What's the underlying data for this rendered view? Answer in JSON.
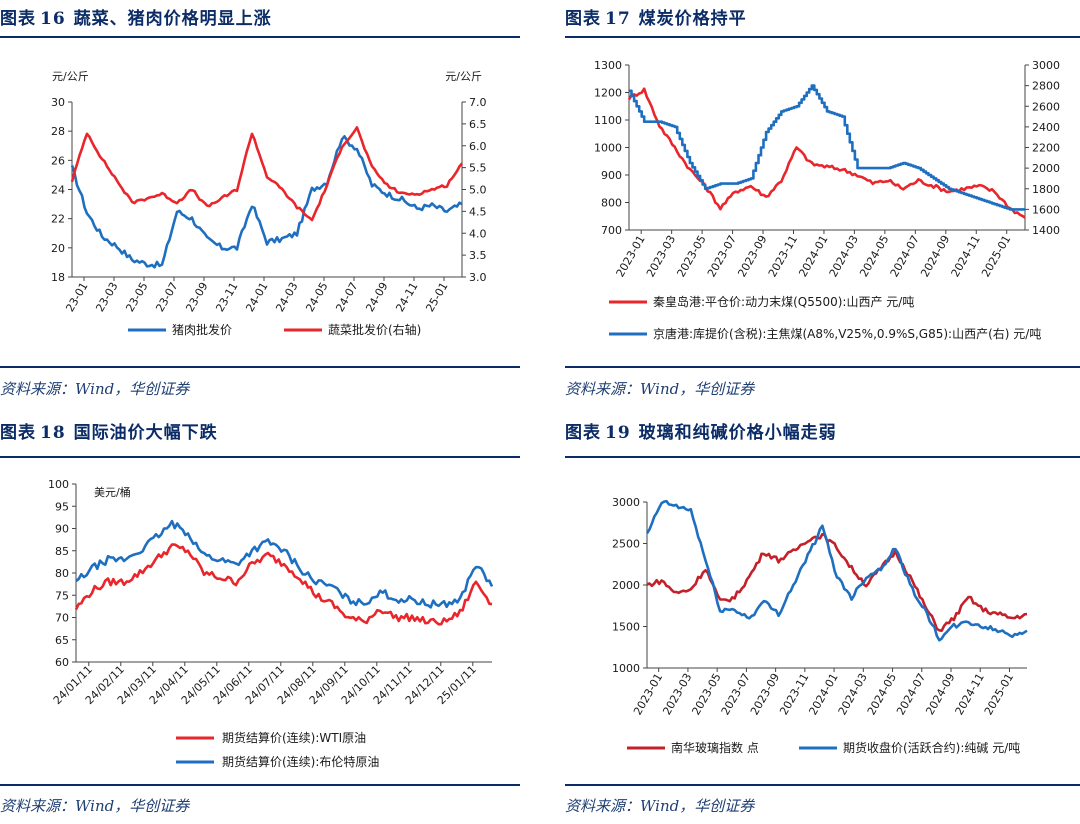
{
  "panels": [
    {
      "fig_label": "图表",
      "fig_num": "16",
      "fig_title": "蔬菜、猪肉价格明显上涨",
      "source": "资料来源：Wind，华创证券"
    },
    {
      "fig_label": "图表",
      "fig_num": "17",
      "fig_title": "煤炭价格持平",
      "source": "资料来源：Wind，华创证券"
    },
    {
      "fig_label": "图表",
      "fig_num": "18",
      "fig_title": "国际油价大幅下跌",
      "source": "资料来源：Wind，华创证券"
    },
    {
      "fig_label": "图表",
      "fig_num": "19",
      "fig_title": "玻璃和纯碱价格小幅走弱",
      "source": "资料来源：Wind，华创证券"
    }
  ],
  "chart_data": [
    {
      "type": "line",
      "title": "蔬菜、猪肉价格明显上涨",
      "y_unit_left": "元/公斤",
      "y_unit_right": "元/公斤",
      "ylim_left": [
        18,
        30
      ],
      "yticks_left": [
        18,
        20,
        22,
        24,
        26,
        28,
        30
      ],
      "ylim_right": [
        3.0,
        7.0
      ],
      "yticks_right": [
        3.0,
        3.5,
        4.0,
        4.5,
        5.0,
        5.5,
        6.0,
        6.5,
        7.0
      ],
      "x_labels": [
        "23-01",
        "23-03",
        "23-05",
        "23-07",
        "23-09",
        "23-11",
        "24-01",
        "24-03",
        "24-05",
        "24-07",
        "24-09",
        "24-11",
        "25-01"
      ],
      "x_index": [
        0,
        1,
        2,
        3,
        4,
        5,
        6,
        7,
        8,
        9,
        10,
        11,
        12,
        13,
        14,
        15,
        16,
        17,
        18,
        19,
        20,
        21,
        22,
        23,
        24,
        25,
        26
      ],
      "series": [
        {
          "name": "猪肉批发价",
          "axis": "left",
          "color": "#1f6fc0",
          "values": [
            25.5,
            22.4,
            20.8,
            20.1,
            19.2,
            18.9,
            18.8,
            22.5,
            22.0,
            20.6,
            20.0,
            20.0,
            23.0,
            20.4,
            20.6,
            21.0,
            24.0,
            24.5,
            27.6,
            26.8,
            24.3,
            23.7,
            23.3,
            22.7,
            22.9,
            22.5,
            23.0
          ]
        },
        {
          "name": "蔬菜批发价(右轴)",
          "axis": "right",
          "color": "#e8262b",
          "values": [
            5.2,
            6.3,
            5.7,
            5.2,
            4.7,
            4.8,
            4.9,
            4.7,
            5.0,
            4.6,
            4.8,
            5.0,
            6.3,
            5.3,
            5.0,
            4.6,
            4.3,
            5.1,
            6.0,
            6.4,
            5.5,
            5.1,
            4.9,
            4.9,
            5.0,
            5.1,
            5.6
          ]
        }
      ]
    },
    {
      "type": "line",
      "title": "煤炭价格持平",
      "ylim_left": [
        700,
        1300
      ],
      "yticks_left": [
        700,
        800,
        900,
        1000,
        1100,
        1200,
        1300
      ],
      "ylim_right": [
        1400,
        3000
      ],
      "yticks_right": [
        1400,
        1600,
        1800,
        2000,
        2200,
        2400,
        2600,
        2800,
        3000
      ],
      "x_labels": [
        "2023-01",
        "2023-03",
        "2023-05",
        "2023-07",
        "2023-09",
        "2023-11",
        "2024-01",
        "2024-03",
        "2024-05",
        "2024-07",
        "2024-09",
        "2024-11",
        "2025-01"
      ],
      "x_index": [
        0,
        1,
        2,
        3,
        4,
        5,
        6,
        7,
        8,
        9,
        10,
        11,
        12,
        13,
        14,
        15,
        16,
        17,
        18,
        19,
        20,
        21,
        22,
        23,
        24,
        25,
        26
      ],
      "series": [
        {
          "name": "秦皇岛港:平仓价:动力末煤(Q5500):山西产 元/吨",
          "axis": "left",
          "color": "#e8262b",
          "values": [
            1180,
            1210,
            1080,
            1000,
            920,
            860,
            780,
            840,
            860,
            820,
            880,
            1000,
            940,
            930,
            920,
            900,
            870,
            880,
            850,
            880,
            860,
            840,
            850,
            860,
            840,
            780,
            745
          ]
        },
        {
          "name": "京唐港:库提价(含税):主焦煤(A8%,V25%,0.9%S,G85):山西产(右) 元/吨",
          "axis": "right",
          "color": "#1f6fc0",
          "values": [
            2750,
            2450,
            2450,
            2400,
            2050,
            1800,
            1850,
            1850,
            1900,
            2350,
            2550,
            2600,
            2800,
            2550,
            2500,
            2000,
            2000,
            2000,
            2050,
            2000,
            1900,
            1800,
            1750,
            1700,
            1650,
            1600,
            1600
          ]
        }
      ]
    },
    {
      "type": "line",
      "title": "国际油价大幅下跌",
      "y_unit_left": "美元/桶",
      "ylim_left": [
        60,
        100
      ],
      "yticks_left": [
        60,
        65,
        70,
        75,
        80,
        85,
        90,
        95,
        100
      ],
      "x_labels": [
        "24/01/11",
        "24/02/11",
        "24/03/11",
        "24/04/11",
        "24/05/11",
        "24/06/11",
        "24/07/11",
        "24/08/11",
        "24/09/11",
        "24/10/11",
        "24/11/11",
        "24/12/11",
        "25/01/11"
      ],
      "x_index": [
        0,
        1,
        2,
        3,
        4,
        5,
        6,
        7,
        8,
        9,
        10,
        11,
        12,
        13,
        14,
        15,
        16,
        17,
        18,
        19,
        20,
        21,
        22,
        23,
        24,
        25,
        26
      ],
      "series": [
        {
          "name": "期货结算价(连续):WTI原油",
          "axis": "left",
          "color": "#e8262b",
          "values": [
            72,
            76,
            78,
            78,
            80,
            83,
            86,
            85,
            80,
            79,
            78,
            82,
            84,
            82,
            79,
            75,
            73,
            70,
            69,
            72,
            70,
            70,
            69,
            69,
            71,
            78,
            73
          ]
        },
        {
          "name": "期货结算价(连续):布伦特原油",
          "axis": "left",
          "color": "#1f6fc0",
          "values": [
            78,
            81,
            83,
            83,
            85,
            88,
            91,
            89,
            84,
            83,
            82,
            85,
            87,
            85,
            81,
            78,
            77,
            74,
            73,
            76,
            74,
            74,
            73,
            73,
            74,
            82,
            77
          ]
        }
      ]
    },
    {
      "type": "line",
      "title": "玻璃和纯碱价格小幅走弱",
      "ylim_left": [
        1000,
        3000
      ],
      "yticks_left": [
        1000,
        1500,
        2000,
        2500,
        3000
      ],
      "x_labels": [
        "2023-01",
        "2023-03",
        "2023-05",
        "2023-07",
        "2023-09",
        "2023-11",
        "2024-01",
        "2024-03",
        "2024-05",
        "2024-07",
        "2024-09",
        "2024-11",
        "2025-01"
      ],
      "x_index": [
        0,
        1,
        2,
        3,
        4,
        5,
        6,
        7,
        8,
        9,
        10,
        11,
        12,
        13,
        14,
        15,
        16,
        17,
        18,
        19,
        20,
        21,
        22,
        23,
        24,
        25,
        26
      ],
      "series": [
        {
          "name": "南华玻璃指数 点",
          "axis": "left",
          "color": "#c3202a",
          "values": [
            2000,
            2050,
            1900,
            1950,
            2200,
            1800,
            1850,
            2100,
            2400,
            2300,
            2400,
            2550,
            2600,
            2450,
            2200,
            2000,
            2200,
            2400,
            2100,
            1750,
            1450,
            1600,
            1850,
            1700,
            1650,
            1600,
            1650
          ]
        },
        {
          "name": "期货收盘价(活跃合约):纯碱 元/吨",
          "axis": "left",
          "color": "#1f6fc0",
          "values": [
            2600,
            3000,
            2950,
            2900,
            2300,
            1700,
            1700,
            1600,
            1800,
            1650,
            2000,
            2350,
            2700,
            2100,
            1850,
            2100,
            2200,
            2450,
            2000,
            1700,
            1350,
            1500,
            1550,
            1500,
            1450,
            1400,
            1450
          ]
        }
      ]
    }
  ]
}
